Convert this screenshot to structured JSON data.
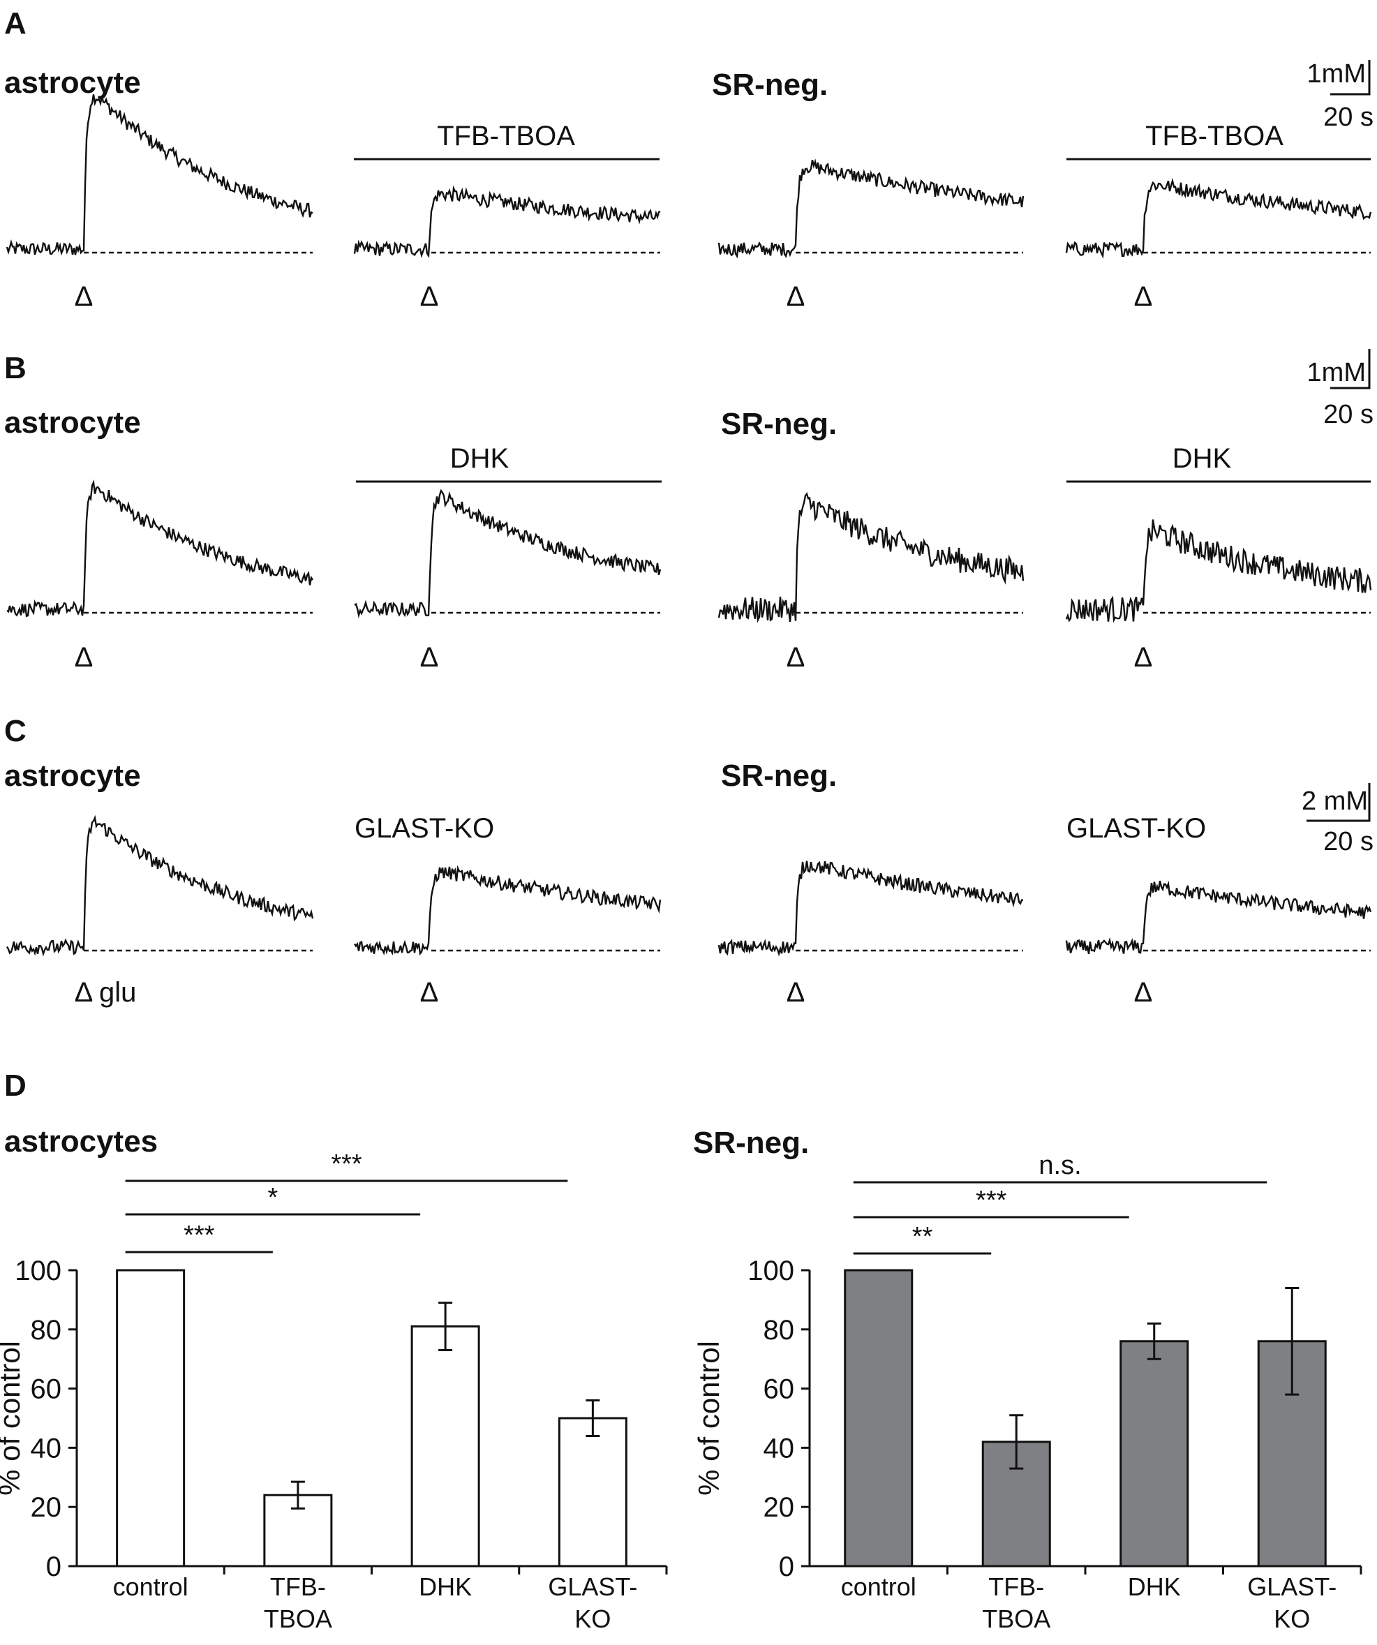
{
  "panels": {
    "a": "A",
    "b": "B",
    "c": "C",
    "d": "D"
  },
  "trace_rows": [
    {
      "panel": "A",
      "left_cell": "astrocyte",
      "right_cell": "SR-neg.",
      "treatment": "TFB-TBOA",
      "treatment_bar": true,
      "scale": {
        "y": "1mM",
        "x": "20 s"
      },
      "stim_label": "",
      "amplitudes": {
        "astro_control": 1.0,
        "astro_treated": 0.3,
        "srneg_control": 0.45,
        "srneg_treated": 0.35
      }
    },
    {
      "panel": "B",
      "left_cell": "astrocyte",
      "right_cell": "SR-neg.",
      "treatment": "DHK",
      "treatment_bar": true,
      "scale": {
        "y": "1mM",
        "x": "20 s"
      },
      "stim_label": "",
      "amplitudes": {
        "astro_control": 1.0,
        "astro_treated": 0.8,
        "srneg_control": 0.75,
        "srneg_treated": 0.55
      }
    },
    {
      "panel": "C",
      "left_cell": "astrocyte",
      "right_cell": "SR-neg.",
      "treatment": "GLAST-KO",
      "treatment_bar": false,
      "scale": {
        "y": "2 mM",
        "x": "20 s"
      },
      "stim_label": "glu",
      "amplitudes": {
        "astro_control": 1.0,
        "astro_treated": 0.5,
        "srneg_control": 0.55,
        "srneg_treated": 0.4
      }
    }
  ],
  "stim_marker": "Δ",
  "chart_data": [
    {
      "type": "bar",
      "title": "astrocytes",
      "categories": [
        "control",
        "TFB-TBOA",
        "DHK",
        "GLAST-KO"
      ],
      "category_lines": [
        [
          "control"
        ],
        [
          "TFB-",
          "TBOA"
        ],
        [
          "DHK"
        ],
        [
          "GLAST-",
          "KO"
        ]
      ],
      "values": [
        100,
        24,
        81,
        50
      ],
      "errors": [
        0,
        4.5,
        8,
        6
      ],
      "bar_color": "#ffffff",
      "ylabel": "% of control",
      "xlabel": "",
      "ylim": [
        0,
        100
      ],
      "yticks": [
        0,
        20,
        40,
        60,
        80,
        100
      ],
      "significance": [
        {
          "from": "control",
          "to": "TFB-TBOA",
          "label": "***"
        },
        {
          "from": "control",
          "to": "DHK",
          "label": "*"
        },
        {
          "from": "control",
          "to": "GLAST-KO",
          "label": "***"
        }
      ]
    },
    {
      "type": "bar",
      "title": "SR-neg.",
      "categories": [
        "control",
        "TFB-TBOA",
        "DHK",
        "GLAST-KO"
      ],
      "category_lines": [
        [
          "control"
        ],
        [
          "TFB-",
          "TBOA"
        ],
        [
          "DHK"
        ],
        [
          "GLAST-",
          "KO"
        ]
      ],
      "values": [
        100,
        42,
        76,
        76
      ],
      "errors": [
        0,
        9,
        6,
        18
      ],
      "bar_color": "#7f8083",
      "ylabel": "% of control",
      "xlabel": "",
      "ylim": [
        0,
        100
      ],
      "yticks": [
        0,
        20,
        40,
        60,
        80,
        100
      ],
      "significance": [
        {
          "from": "control",
          "to": "TFB-TBOA",
          "label": "**"
        },
        {
          "from": "control",
          "to": "DHK",
          "label": "***"
        },
        {
          "from": "control",
          "to": "GLAST-KO",
          "label": "n.s."
        }
      ]
    }
  ]
}
